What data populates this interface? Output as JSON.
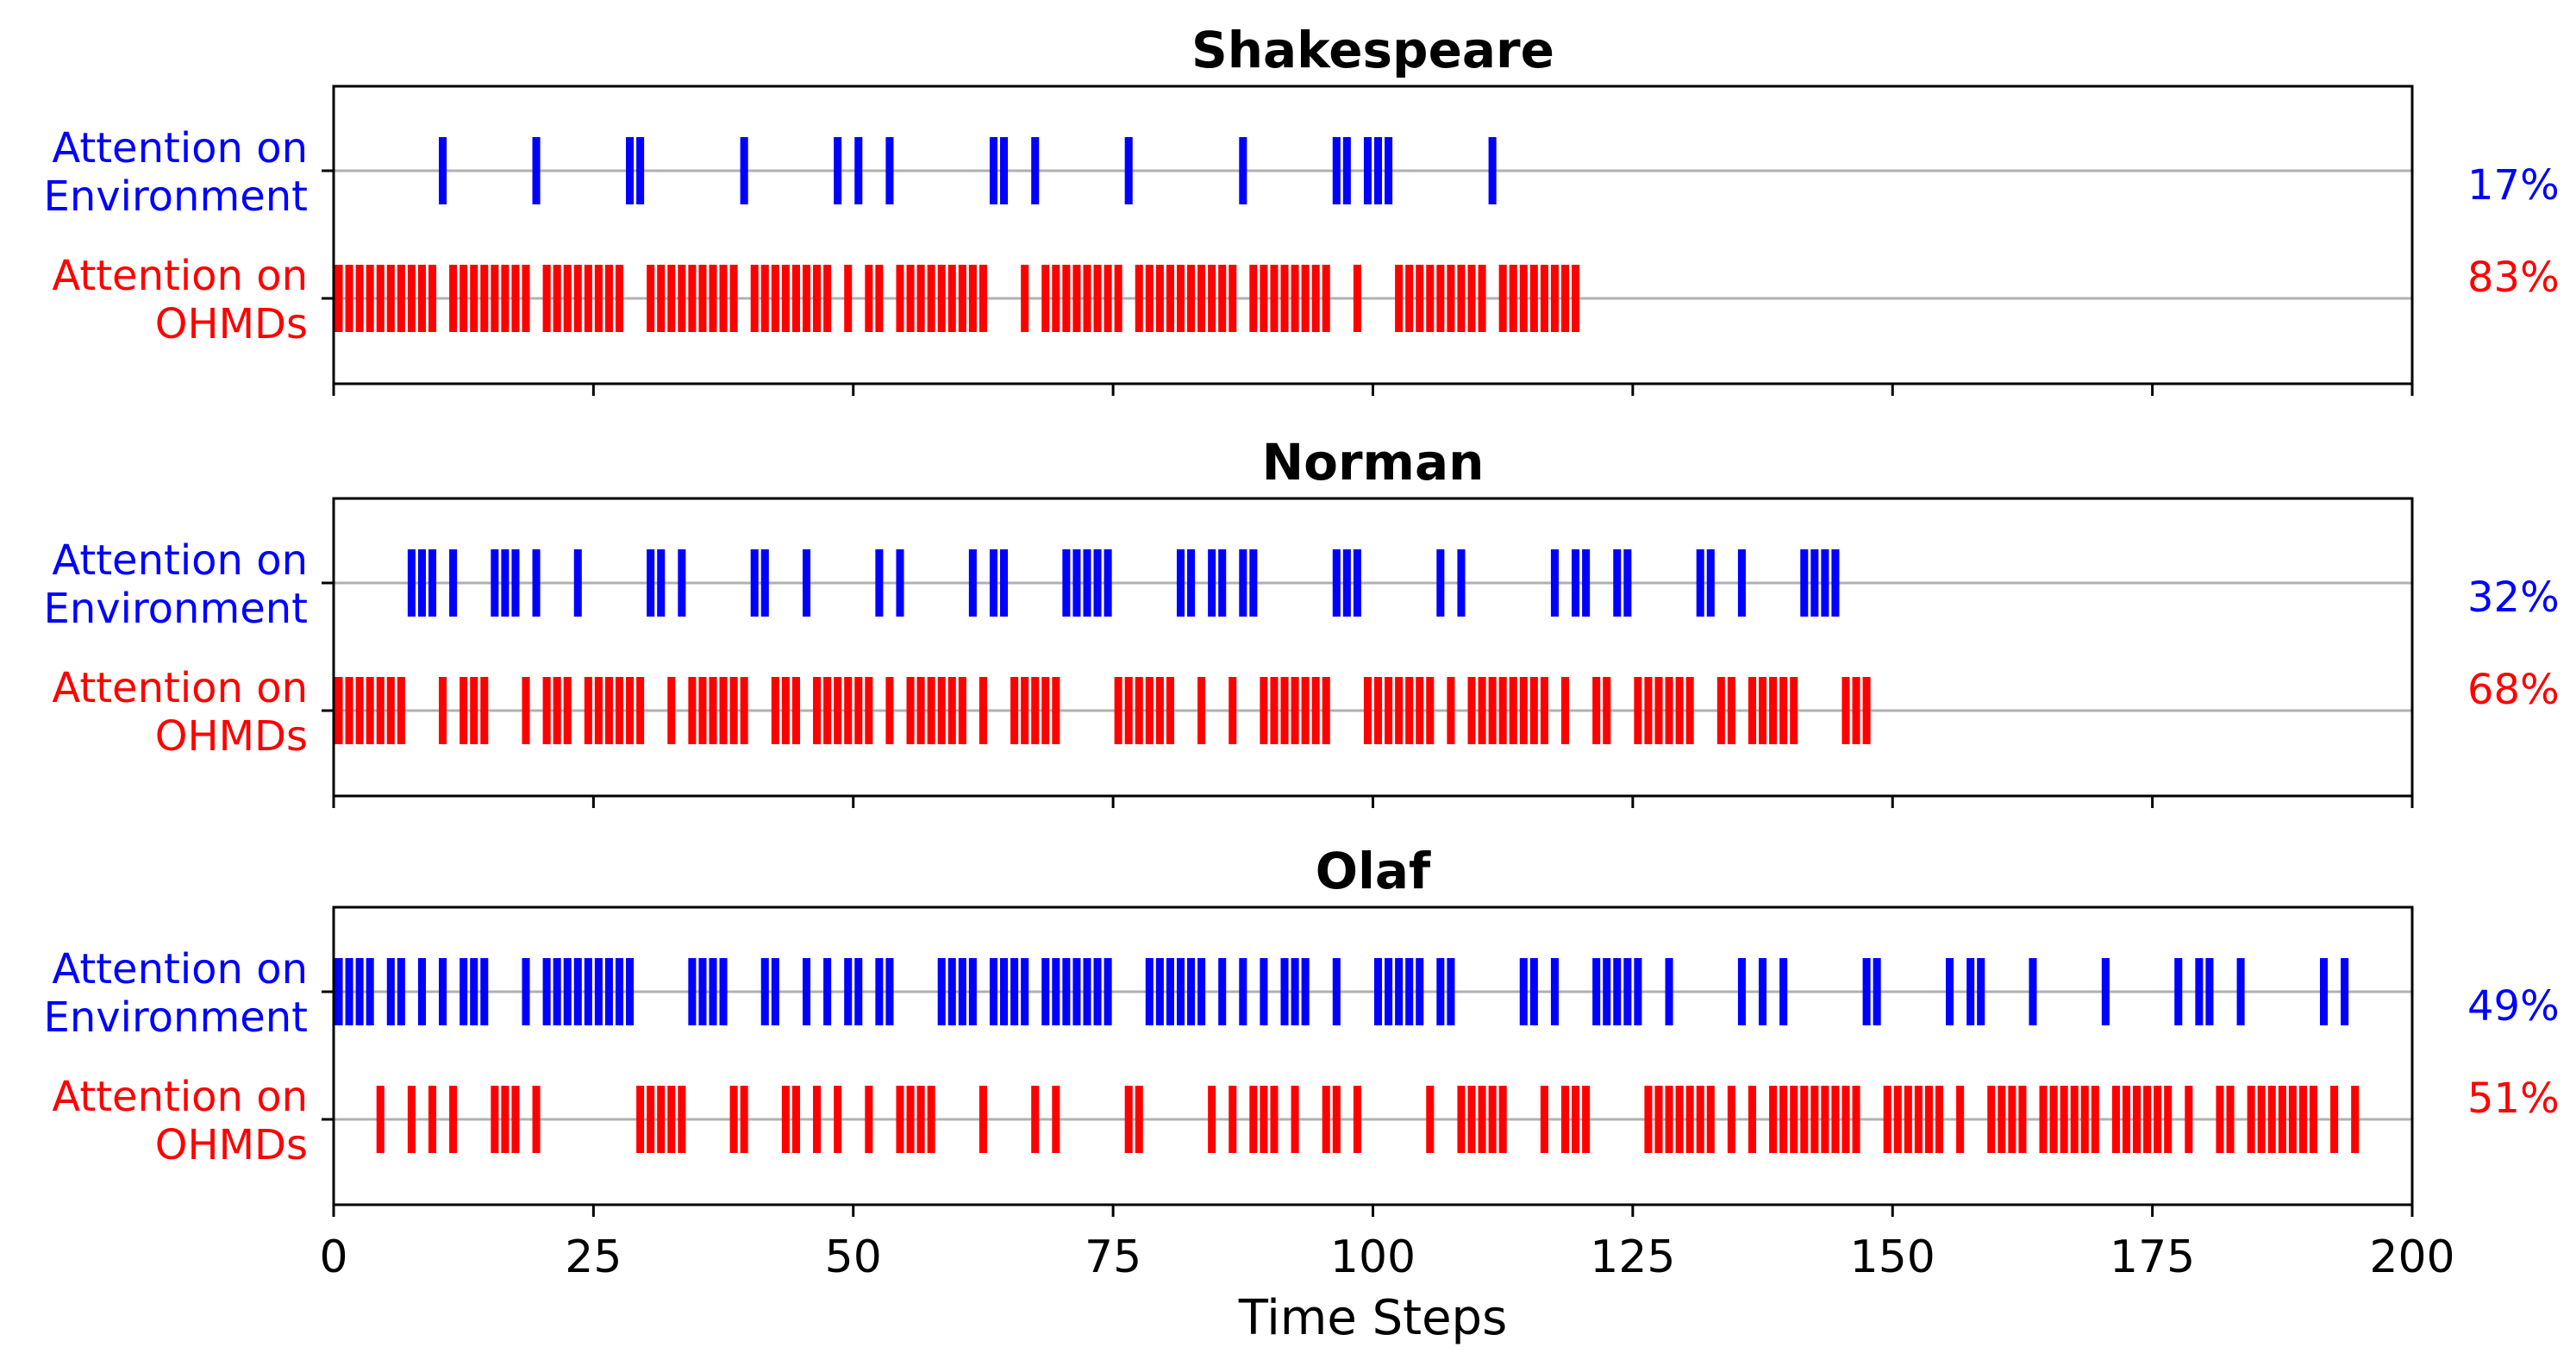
{
  "chart_data": {
    "type": "timeline",
    "xlabel": "Time Steps",
    "xlim": [
      0,
      200
    ],
    "xticks": [
      "0",
      "25",
      "50",
      "75",
      "100",
      "125",
      "150",
      "175",
      "200"
    ],
    "colors": {
      "environment": "#0000ff",
      "ohmds": "#ff0000",
      "guide": "#b0b0b0"
    },
    "row_labels": {
      "environment": [
        "Attention on",
        "Environment"
      ],
      "ohmds": [
        "Attention on",
        "OHMDs"
      ]
    },
    "panels": [
      {
        "title": "Shakespeare",
        "environment_pct": "17%",
        "ohmds_pct": "83%",
        "environment_steps": [
          10,
          19,
          28,
          29,
          39,
          48,
          50,
          53,
          63,
          64,
          67,
          76,
          87,
          96,
          97,
          99,
          100,
          101,
          111
        ],
        "ohmds_steps": [
          0,
          1,
          2,
          3,
          4,
          5,
          6,
          7,
          8,
          9,
          11,
          12,
          13,
          14,
          15,
          16,
          17,
          18,
          20,
          21,
          22,
          23,
          24,
          25,
          26,
          27,
          30,
          31,
          32,
          33,
          34,
          35,
          36,
          37,
          38,
          40,
          41,
          42,
          43,
          44,
          45,
          46,
          47,
          49,
          51,
          52,
          54,
          55,
          56,
          57,
          58,
          59,
          60,
          61,
          62,
          66,
          68,
          69,
          70,
          71,
          72,
          73,
          74,
          75,
          77,
          78,
          79,
          80,
          81,
          82,
          83,
          84,
          85,
          86,
          88,
          89,
          90,
          91,
          92,
          93,
          94,
          95,
          98,
          102,
          103,
          104,
          105,
          106,
          107,
          108,
          109,
          110,
          112,
          113,
          114,
          115,
          116,
          117,
          118,
          119
        ]
      },
      {
        "title": "Norman",
        "environment_pct": "32%",
        "ohmds_pct": "68%",
        "environment_steps": [
          7,
          8,
          9,
          11,
          15,
          16,
          17,
          19,
          23,
          30,
          31,
          33,
          40,
          41,
          45,
          52,
          54,
          61,
          63,
          64,
          70,
          71,
          72,
          73,
          74,
          81,
          82,
          84,
          85,
          87,
          88,
          96,
          97,
          98,
          106,
          108,
          117,
          119,
          120,
          123,
          124,
          131,
          132,
          135,
          141,
          142,
          143,
          144
        ],
        "ohmds_steps": [
          0,
          1,
          2,
          3,
          4,
          5,
          6,
          10,
          12,
          13,
          14,
          18,
          20,
          21,
          22,
          24,
          25,
          26,
          27,
          28,
          29,
          32,
          34,
          35,
          36,
          37,
          38,
          39,
          42,
          43,
          44,
          46,
          47,
          48,
          49,
          50,
          51,
          53,
          55,
          56,
          57,
          58,
          59,
          60,
          62,
          65,
          66,
          67,
          68,
          69,
          75,
          76,
          77,
          78,
          79,
          80,
          83,
          86,
          89,
          90,
          91,
          92,
          93,
          94,
          95,
          99,
          100,
          101,
          102,
          103,
          104,
          105,
          107,
          109,
          110,
          111,
          112,
          113,
          114,
          115,
          116,
          118,
          121,
          122,
          125,
          126,
          127,
          128,
          129,
          130,
          133,
          134,
          136,
          137,
          138,
          139,
          140,
          145,
          146,
          147
        ]
      },
      {
        "title": "Olaf",
        "environment_pct": "49%",
        "ohmds_pct": "51%",
        "environment_steps": [
          0,
          1,
          2,
          3,
          5,
          6,
          8,
          10,
          12,
          13,
          14,
          18,
          20,
          21,
          22,
          23,
          24,
          25,
          26,
          27,
          28,
          34,
          35,
          36,
          37,
          41,
          42,
          45,
          47,
          49,
          50,
          52,
          53,
          58,
          59,
          60,
          61,
          63,
          64,
          65,
          66,
          68,
          69,
          70,
          71,
          72,
          73,
          74,
          78,
          79,
          80,
          81,
          82,
          83,
          85,
          87,
          89,
          91,
          92,
          93,
          96,
          100,
          101,
          102,
          103,
          104,
          106,
          107,
          114,
          115,
          117,
          121,
          122,
          123,
          124,
          125,
          128,
          135,
          137,
          139,
          147,
          148,
          155,
          157,
          158,
          163,
          170,
          177,
          179,
          180,
          183,
          191,
          193
        ],
        "ohmds_steps": [
          4,
          7,
          9,
          11,
          15,
          16,
          17,
          19,
          29,
          30,
          31,
          32,
          33,
          38,
          39,
          43,
          44,
          46,
          48,
          51,
          54,
          55,
          56,
          57,
          62,
          67,
          69,
          76,
          77,
          84,
          86,
          88,
          89,
          90,
          92,
          95,
          96,
          98,
          105,
          108,
          109,
          110,
          111,
          112,
          116,
          118,
          119,
          120,
          126,
          127,
          128,
          129,
          130,
          131,
          132,
          134,
          136,
          138,
          139,
          140,
          141,
          142,
          143,
          144,
          145,
          146,
          149,
          150,
          151,
          152,
          153,
          154,
          156,
          159,
          160,
          161,
          162,
          164,
          165,
          166,
          167,
          168,
          169,
          171,
          172,
          173,
          174,
          175,
          176,
          178,
          181,
          182,
          184,
          185,
          186,
          187,
          188,
          189,
          190,
          192,
          194
        ]
      }
    ]
  }
}
